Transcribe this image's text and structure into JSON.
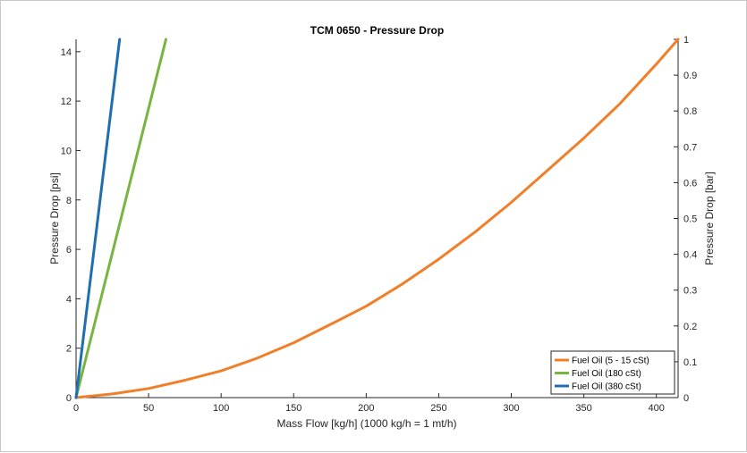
{
  "chart_data": {
    "type": "line",
    "title": "TCM 0650 - Pressure Drop",
    "xlabel": "Mass Flow [kg/h]    (1000 kg/h = 1 mt/h)",
    "ylabel": "Pressure Drop [psi]",
    "y2label": "Pressure Drop [bar]",
    "xlim": [
      0,
      415
    ],
    "ylim": [
      0,
      14.5
    ],
    "y2lim": [
      0,
      1
    ],
    "xticks": [
      0,
      50,
      100,
      150,
      200,
      250,
      300,
      350,
      400
    ],
    "yticks": [
      0,
      2,
      4,
      6,
      8,
      10,
      12,
      14
    ],
    "y2ticks": [
      "0",
      "0.1",
      "0.2",
      "0.3",
      "0.4",
      "0.5",
      "0.6",
      "0.7",
      "0.8",
      "0.9",
      "1"
    ],
    "grid": false,
    "legend_position": "bottom-right",
    "series": [
      {
        "name": "Fuel Oil (5 - 15 cSt)",
        "color": "#f07f2a",
        "x": [
          0,
          25,
          50,
          75,
          100,
          125,
          150,
          175,
          200,
          225,
          250,
          275,
          300,
          325,
          350,
          375,
          400,
          415
        ],
        "y": [
          0.0,
          0.15,
          0.37,
          0.7,
          1.08,
          1.6,
          2.22,
          2.95,
          3.7,
          4.6,
          5.6,
          6.7,
          7.9,
          9.2,
          10.5,
          11.9,
          13.5,
          14.5
        ]
      },
      {
        "name": "Fuel Oil (180 cSt)",
        "color": "#77b53f",
        "x": [
          0,
          62
        ],
        "y": [
          0,
          14.5
        ]
      },
      {
        "name": "Fuel Oil (380 cSt)",
        "color": "#1f6fb0",
        "x": [
          0,
          30
        ],
        "y": [
          0,
          14.5
        ]
      }
    ]
  }
}
